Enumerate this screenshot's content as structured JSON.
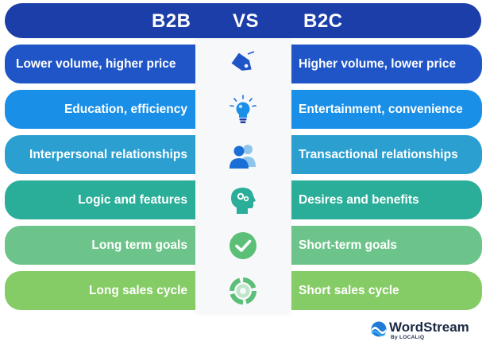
{
  "header": {
    "left": "B2B",
    "vs": "VS",
    "right": "B2C"
  },
  "rows": [
    {
      "left": "Lower volume, higher price",
      "right": "Higher volume, lower price",
      "icon": "price-tag-icon",
      "color": "#1f55c7"
    },
    {
      "left": "Education, efficiency",
      "right": "Entertainment, convenience",
      "icon": "lightbulb-icon",
      "color": "#1a8fe8"
    },
    {
      "left": "Interpersonal relationships",
      "right": "Transactional relationships",
      "icon": "people-icon",
      "color": "#2a9fd0"
    },
    {
      "left": "Logic and features",
      "right": "Desires and benefits",
      "icon": "head-brain-icon",
      "color": "#2aae99"
    },
    {
      "left": "Long term goals",
      "right": "Short-term goals",
      "icon": "checkmark-icon",
      "color": "#6cc48a"
    },
    {
      "left": "Long sales cycle",
      "right": "Short sales cycle",
      "icon": "cycle-icon",
      "color": "#86cc66"
    }
  ],
  "logo": {
    "name": "WordStream",
    "sub": "By LOCALiQ"
  },
  "colors": {
    "header": "#1b3ea8",
    "icon_blue": "#1a6fd6",
    "icon_teal": "#2aae99",
    "icon_green": "#5bbf77"
  }
}
